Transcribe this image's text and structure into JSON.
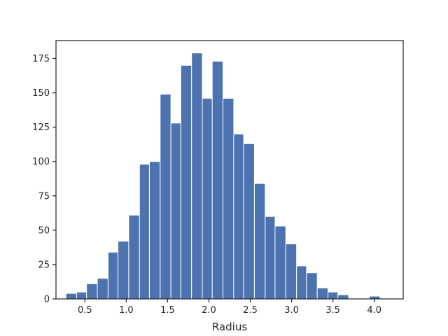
{
  "chart_data": {
    "type": "bar",
    "xlabel": "Radius",
    "ylabel": "",
    "xlim": [
      0.15,
      4.35
    ],
    "ylim": [
      0,
      188
    ],
    "xticks": [
      0.5,
      1.0,
      1.5,
      2.0,
      2.5,
      3.0,
      3.5,
      4.0
    ],
    "xtick_labels": [
      "0.5",
      "1.0",
      "1.5",
      "2.0",
      "2.5",
      "3.0",
      "3.5",
      "4.0"
    ],
    "yticks": [
      0,
      25,
      50,
      75,
      100,
      125,
      150,
      175
    ],
    "ytick_labels": [
      "0",
      "25",
      "50",
      "75",
      "100",
      "125",
      "150",
      "175"
    ],
    "grid": false,
    "bar_color": "#4c72b0",
    "bins": [
      {
        "x0": 0.27,
        "x1": 0.4,
        "count": 4
      },
      {
        "x0": 0.4,
        "x1": 0.52,
        "count": 5
      },
      {
        "x0": 0.52,
        "x1": 0.65,
        "count": 11
      },
      {
        "x0": 0.65,
        "x1": 0.78,
        "count": 15
      },
      {
        "x0": 0.78,
        "x1": 0.9,
        "count": 34
      },
      {
        "x0": 0.9,
        "x1": 1.03,
        "count": 42
      },
      {
        "x0": 1.03,
        "x1": 1.16,
        "count": 61
      },
      {
        "x0": 1.16,
        "x1": 1.28,
        "count": 98
      },
      {
        "x0": 1.28,
        "x1": 1.41,
        "count": 100
      },
      {
        "x0": 1.41,
        "x1": 1.54,
        "count": 149
      },
      {
        "x0": 1.54,
        "x1": 1.66,
        "count": 128
      },
      {
        "x0": 1.66,
        "x1": 1.79,
        "count": 170
      },
      {
        "x0": 1.79,
        "x1": 1.92,
        "count": 179
      },
      {
        "x0": 1.92,
        "x1": 2.04,
        "count": 146
      },
      {
        "x0": 2.04,
        "x1": 2.17,
        "count": 173
      },
      {
        "x0": 2.17,
        "x1": 2.3,
        "count": 146
      },
      {
        "x0": 2.3,
        "x1": 2.42,
        "count": 120
      },
      {
        "x0": 2.42,
        "x1": 2.55,
        "count": 113
      },
      {
        "x0": 2.55,
        "x1": 2.68,
        "count": 84
      },
      {
        "x0": 2.68,
        "x1": 2.8,
        "count": 60
      },
      {
        "x0": 2.8,
        "x1": 2.93,
        "count": 53
      },
      {
        "x0": 2.93,
        "x1": 3.06,
        "count": 40
      },
      {
        "x0": 3.06,
        "x1": 3.18,
        "count": 24
      },
      {
        "x0": 3.18,
        "x1": 3.31,
        "count": 19
      },
      {
        "x0": 3.31,
        "x1": 3.44,
        "count": 8
      },
      {
        "x0": 3.44,
        "x1": 3.56,
        "count": 5
      },
      {
        "x0": 3.56,
        "x1": 3.69,
        "count": 3
      },
      {
        "x0": 3.69,
        "x1": 3.82,
        "count": 0
      },
      {
        "x0": 3.82,
        "x1": 3.94,
        "count": 0
      },
      {
        "x0": 3.94,
        "x1": 4.07,
        "count": 2
      }
    ]
  }
}
